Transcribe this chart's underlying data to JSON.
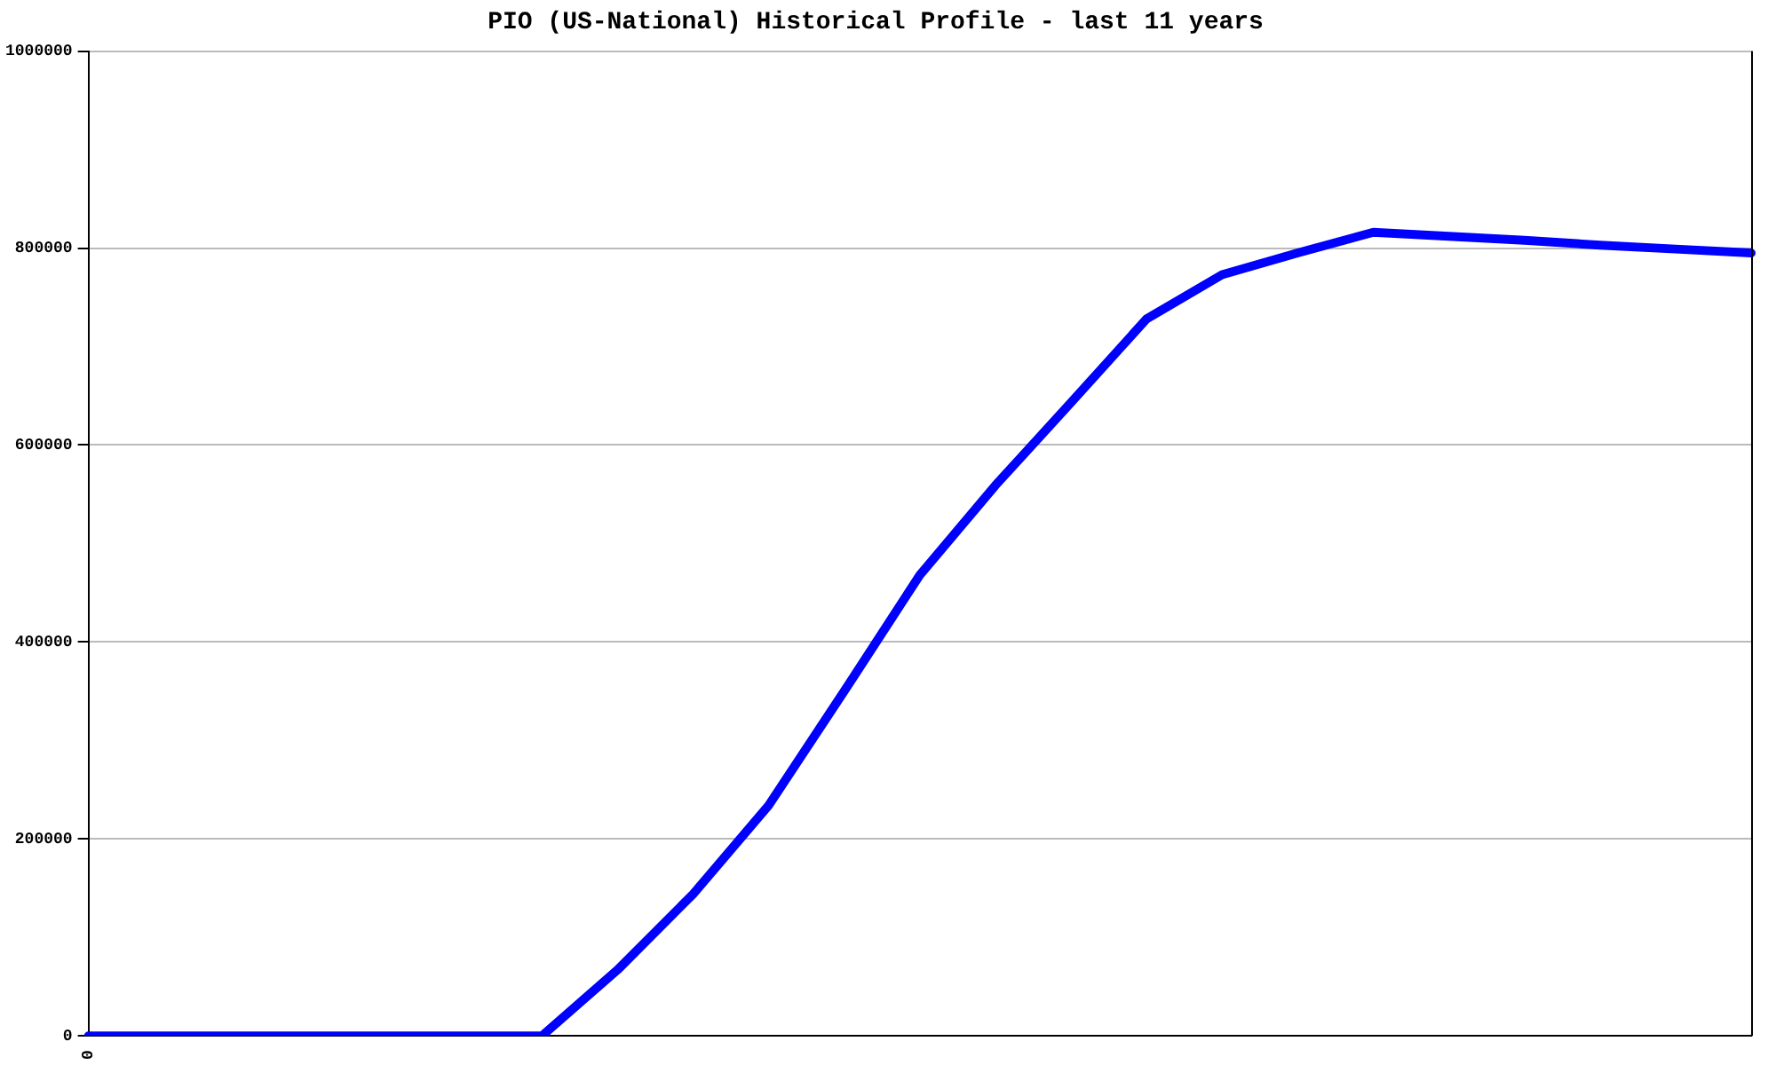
{
  "chart_data": {
    "type": "line",
    "title": "PIO (US-National) Historical Profile - last 11 years",
    "categories": [
      "0",
      null,
      null,
      null,
      null,
      null,
      null,
      null,
      null,
      null,
      null,
      null,
      null,
      null,
      null,
      null,
      null,
      null,
      null,
      null,
      null,
      null,
      null
    ],
    "series": [
      {
        "color": "#0000ff",
        "values": [
          0,
          0,
          0,
          0,
          0,
          0,
          0,
          67000,
          144000,
          234000,
          350000,
          468000,
          559000,
          643000,
          728000,
          773000,
          795000,
          816000,
          812000,
          808000,
          803000,
          799000,
          795000
        ]
      }
    ],
    "ylim": [
      0,
      1000000
    ],
    "yticks": [
      0,
      200000,
      400000,
      600000,
      800000,
      1000000
    ],
    "grid": "y",
    "legend": false,
    "marker": "none",
    "line_style": "solid"
  }
}
